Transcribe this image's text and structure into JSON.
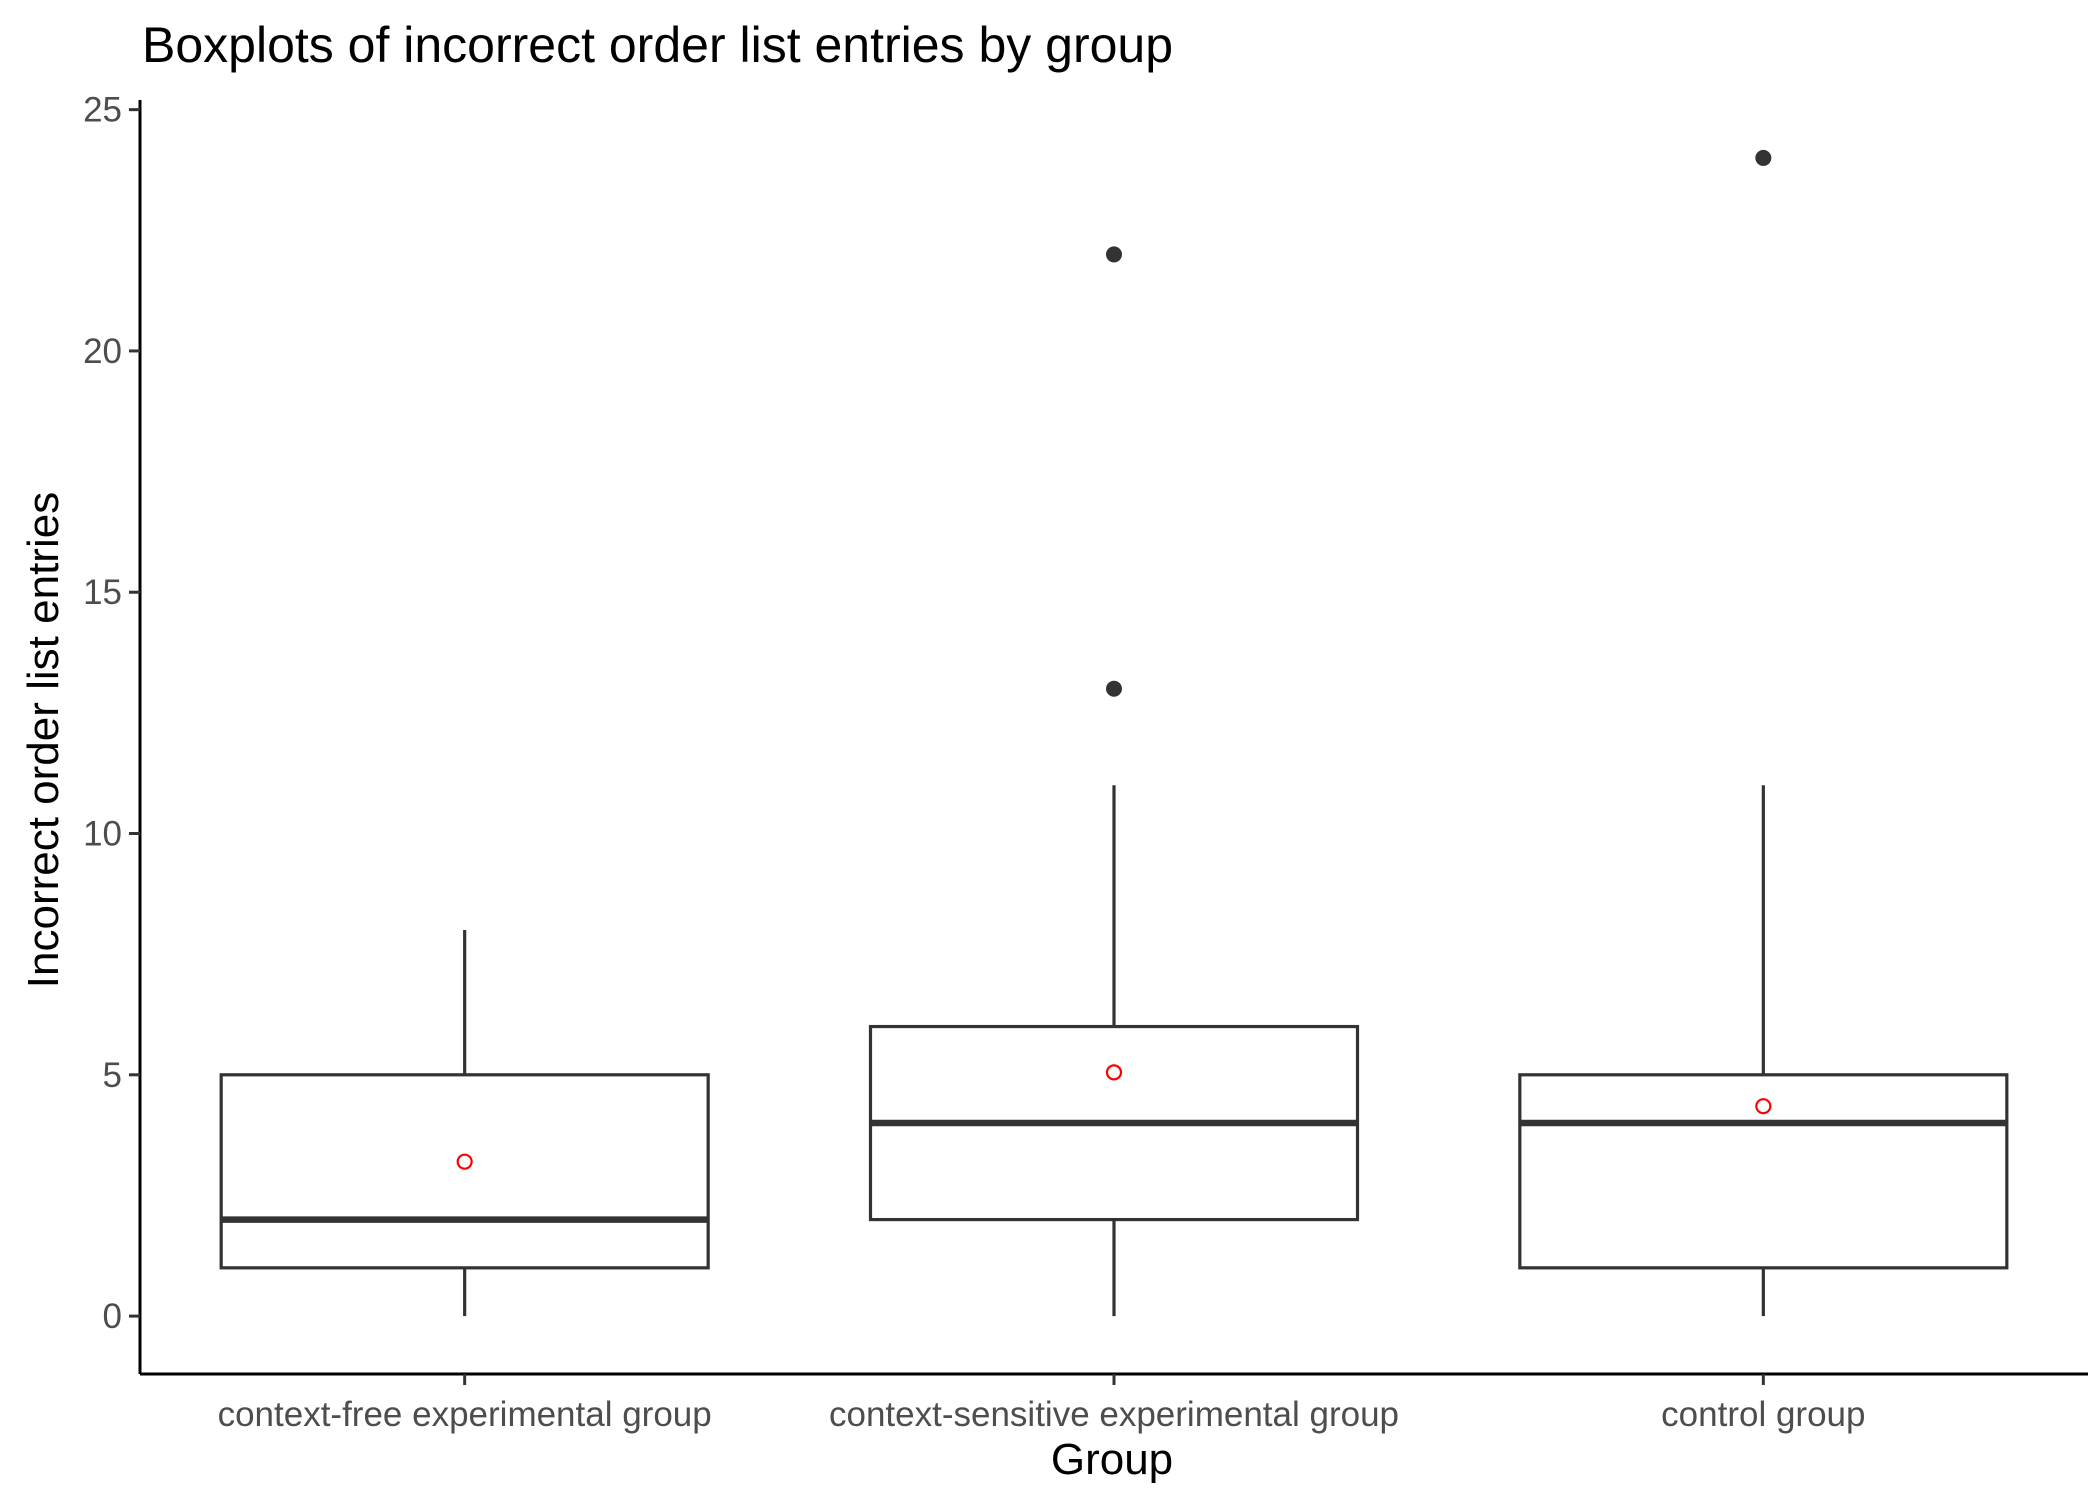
{
  "chart_data": {
    "type": "boxplot",
    "title": "Boxplots of incorrect order list entries by group",
    "xlabel": "Group",
    "ylabel": "Incorrect order list entries",
    "ylim": [
      -1.2,
      25.2
    ],
    "yticks": [
      0,
      5,
      10,
      15,
      20,
      25
    ],
    "grid": false,
    "categories": [
      "context-free experimental group",
      "context-sensitive experimental group",
      "control group"
    ],
    "boxes": [
      {
        "group": "context-free experimental group",
        "min": 0,
        "q1": 1,
        "median": 2,
        "q3": 5,
        "max": 8,
        "mean": 3.2,
        "outliers": []
      },
      {
        "group": "context-sensitive experimental group",
        "min": 0,
        "q1": 2,
        "median": 4,
        "q3": 6,
        "max": 11,
        "mean": 5.05,
        "outliers": [
          13,
          22
        ]
      },
      {
        "group": "control group",
        "min": 0,
        "q1": 1,
        "median": 4,
        "q3": 5,
        "max": 11,
        "mean": 4.35,
        "outliers": [
          24
        ]
      }
    ],
    "colors": {
      "box": "#333333",
      "mean_marker": "#ff0000",
      "outlier": "#333333",
      "axis": "#000000"
    }
  }
}
